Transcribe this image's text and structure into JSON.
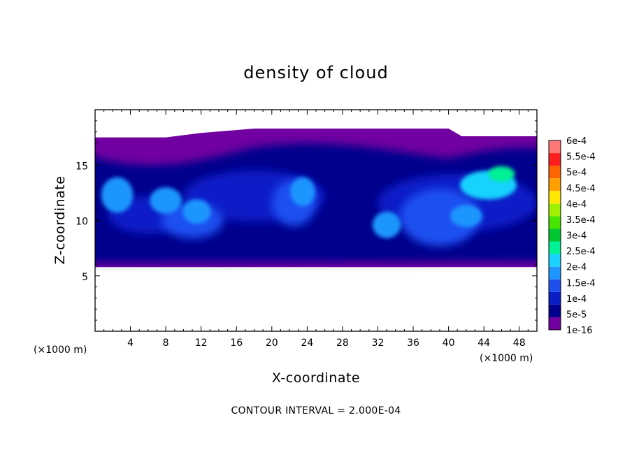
{
  "chart_data": {
    "type": "heatmap",
    "title": "density of cloud",
    "xlabel": "X-coordinate",
    "ylabel": "Z-coordinate",
    "x_unit_label_left": "(×1000 m)",
    "x_unit_label_right": "(×1000 m)",
    "xlim": [
      0,
      50
    ],
    "ylim": [
      0,
      20
    ],
    "x_ticks": [
      4,
      8,
      12,
      16,
      20,
      24,
      28,
      32,
      36,
      40,
      44,
      48
    ],
    "x_tick_labels": [
      "4",
      "8",
      "12",
      "16",
      "20",
      "24",
      "28",
      "32",
      "36",
      "40",
      "44",
      "48"
    ],
    "y_ticks": [
      5,
      10,
      15
    ],
    "y_tick_labels": [
      "5",
      "10",
      "15"
    ],
    "note": "CONTOUR INTERVAL = 2.000E-04",
    "colorbar": {
      "levels": [
        "1e-16",
        "5e-5",
        "1e-4",
        "1.5e-4",
        "2e-4",
        "2.5e-4",
        "3e-4",
        "3.5e-4",
        "4e-4",
        "4.5e-4",
        "5e-4",
        "5.5e-4",
        "6e-4"
      ],
      "colors": [
        "#7000a0",
        "#00008c",
        "#0a1ec8",
        "#1e50f0",
        "#1e96ff",
        "#19d2ff",
        "#00f096",
        "#00c832",
        "#46e600",
        "#a0f000",
        "#ffe600",
        "#ffa000",
        "#ff6400",
        "#ff1e1e",
        "#ff7878"
      ]
    },
    "cloud_extent": {
      "z_bottom": 5.8,
      "z_top_left": 17.5,
      "z_top_center": 18.3,
      "z_top_right": 17.6
    },
    "cells": [
      {
        "x": 18,
        "z": 12.2,
        "sx": 16,
        "sz": 4.6,
        "level": 1
      },
      {
        "x": 41,
        "z": 11.6,
        "sx": 18,
        "sz": 5.2,
        "level": 1
      },
      {
        "x": 6,
        "z": 10.5,
        "sx": 9,
        "sz": 3.4,
        "level": 1
      },
      {
        "x": 11,
        "z": 10,
        "sx": 7,
        "sz": 3.2,
        "level": 2
      },
      {
        "x": 22.5,
        "z": 11.6,
        "sx": 5,
        "sz": 4.2,
        "level": 2
      },
      {
        "x": 39,
        "z": 10.3,
        "sx": 9,
        "sz": 5.2,
        "level": 2
      },
      {
        "x": 2.5,
        "z": 12.3,
        "sx": 3.6,
        "sz": 3.2,
        "level": 3
      },
      {
        "x": 8,
        "z": 11.8,
        "sx": 3.6,
        "sz": 2.4,
        "level": 3
      },
      {
        "x": 11.5,
        "z": 10.8,
        "sx": 3.2,
        "sz": 2.2,
        "level": 3
      },
      {
        "x": 23.5,
        "z": 12.6,
        "sx": 2.8,
        "sz": 2.6,
        "level": 3
      },
      {
        "x": 44.5,
        "z": 13.2,
        "sx": 6.4,
        "sz": 2.6,
        "level": 4
      },
      {
        "x": 42,
        "z": 10.4,
        "sx": 3.6,
        "sz": 2,
        "level": 3
      },
      {
        "x": 33,
        "z": 9.6,
        "sx": 3.2,
        "sz": 2.4,
        "level": 3
      },
      {
        "x": 46,
        "z": 14.2,
        "sx": 3,
        "sz": 1.4,
        "level": 5
      }
    ]
  }
}
